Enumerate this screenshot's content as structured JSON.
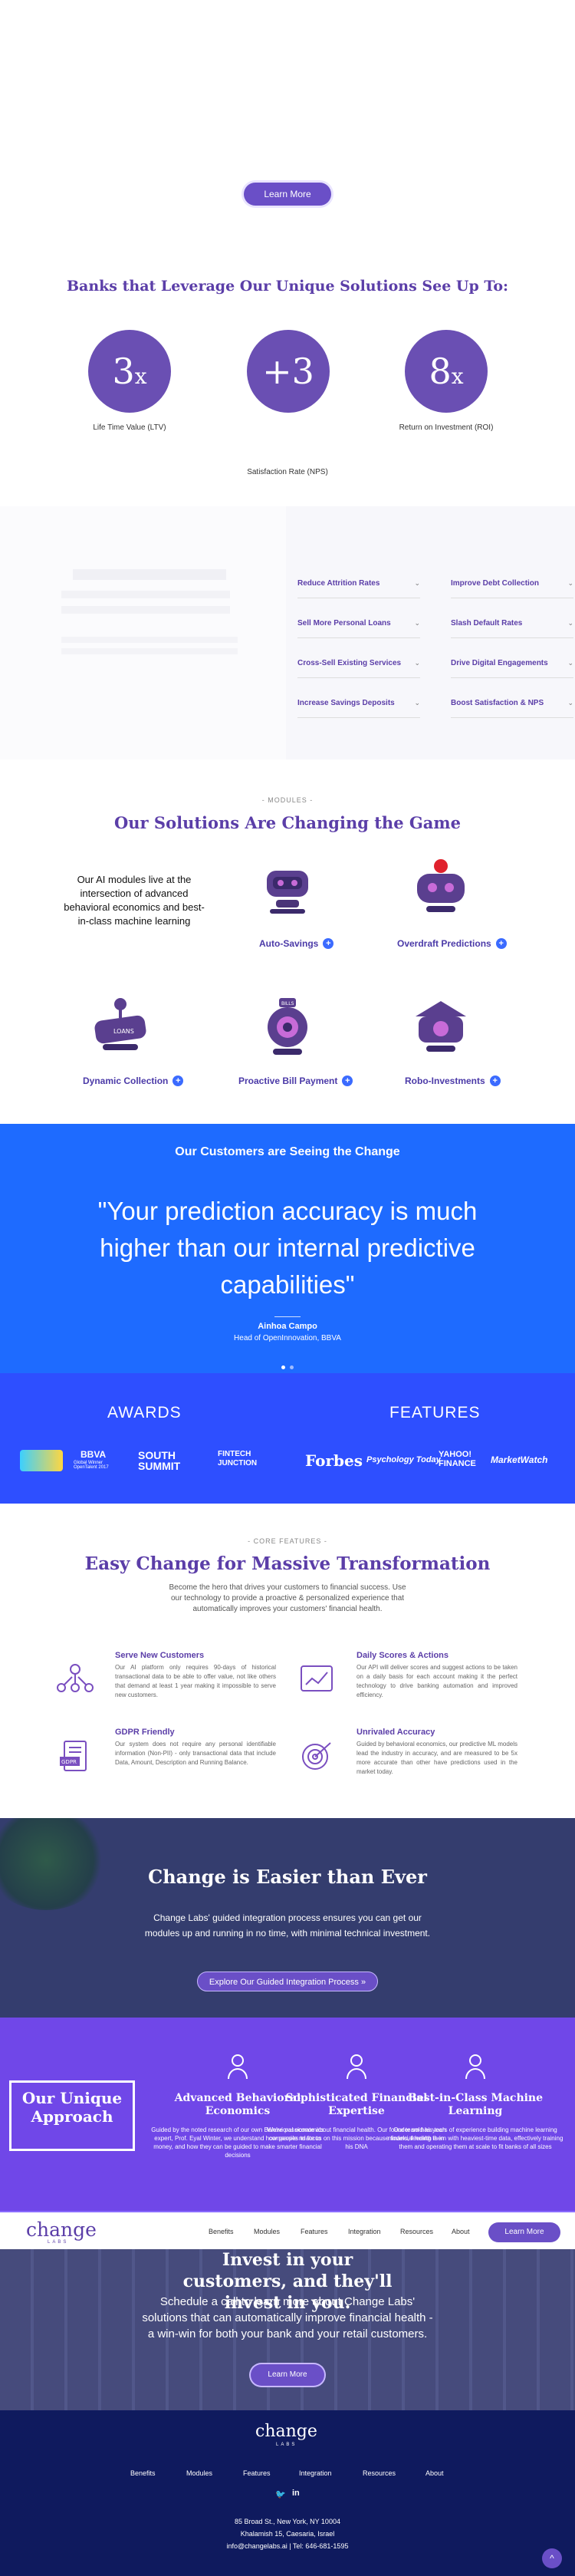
{
  "hero": {
    "learn_more": "Learn More"
  },
  "stats": {
    "title": "Banks that Leverage Our Unique Solutions See Up To:",
    "items": [
      {
        "value": "3",
        "unit": "x",
        "label": "Life Time Value (LTV)"
      },
      {
        "value": "+3",
        "unit": "",
        "label": "Satisfaction Rate (NPS)"
      },
      {
        "value": "8",
        "unit": "x",
        "label": "Return on Investment (ROI)"
      }
    ]
  },
  "faq": {
    "items": [
      "Reduce Attrition Rates",
      "Improve Debt Collection",
      "Sell More Personal Loans",
      "Slash Default Rates",
      "Cross-Sell Existing Services",
      "Drive Digital Engagements",
      "Increase Savings Deposits",
      "Boost Satisfaction & NPS"
    ]
  },
  "modules": {
    "kicker": "- MODULES -",
    "title": "Our Solutions Are Changing the Game",
    "intro": "Our AI modules live at the intersection of advanced behavioral economics and best-in-class machine learning",
    "items": [
      "Auto-Savings",
      "Overdraft Predictions",
      "Dynamic Collection",
      "Proactive Bill Payment",
      "Robo-Investments"
    ]
  },
  "testimonial": {
    "heading": "Our Customers are Seeing the Change",
    "quote": "\"Your prediction accuracy is much higher than our internal predictive capabilities\"",
    "name": "Ainhoa Campo",
    "role": "Head of OpenInnovation, BBVA"
  },
  "awards": {
    "awards_heading": "AWARDS",
    "features_heading": "FEATURES",
    "award_logos": [
      "BBVA",
      "SOUTH SUMMIT",
      "FINTECH JUNCTION"
    ],
    "bbva_sub": "Global Winner OpenTalent 2017",
    "press_logos": [
      "Forbes",
      "Psychology Today",
      "YAHOO! FINANCE",
      "MarketWatch"
    ]
  },
  "core": {
    "kicker": "- CORE FEATURES -",
    "title": "Easy Change for Massive Transformation",
    "intro": "Become the hero that drives your customers to financial success. Use our technology to provide a proactive & personalized experience that automatically improves your customers' financial health.",
    "features": [
      {
        "title": "Serve New Customers",
        "text": "Our AI platform only requires 90-days of historical transactional data to be able to offer value, not like others that demand at least 1 year making it impossible to serve new customers."
      },
      {
        "title": "Daily Scores & Actions",
        "text": "Our API will deliver scores and suggest actions to be taken on a daily basis for each account making it the perfect technology to drive banking automation and improved efficiency."
      },
      {
        "title": "GDPR Friendly",
        "text": "Our system does not require any personal identifiable information (Non-PII) - only transactional data that include Data, Amount, Description and Running Balance."
      },
      {
        "title": "Unrivaled Accuracy",
        "text": "Guided by behavioral economics, our predictive ML models lead the industry in accuracy, and are measured to be 5x more accurate than other have predictions used in the market today."
      }
    ]
  },
  "easier": {
    "title": "Change is Easier than Ever",
    "text": "Change Labs' guided integration process ensures you can get our modules up and running in no time, with minimal technical investment.",
    "cta": "Explore Our Guided Integration Process »"
  },
  "approach": {
    "box": "Our Unique Approach",
    "cols": [
      {
        "title": "Advanced Behavioral Economics",
        "text": "Guided by the noted research of our own Behavioral economics expert, Prof. Eyal Winter, we understand how people relate to money, and how they can be guided to make smarter financial decisions"
      },
      {
        "title": "Sophisticated Financial Expertise",
        "text": "We're passionate about financial health. Our founder sold his tech companies to focus on this mission because financial health is in his DNA"
      },
      {
        "title": "Best-in-Class Machine Learning",
        "text": "Our team has years of experience building machine learning models, feeding them with heaviest-time data, effectively training them and operating them at scale to fit banks of all sizes"
      }
    ]
  },
  "nav": {
    "brand": "change",
    "brand_sub": "LABS",
    "items": [
      "Benefits",
      "Modules",
      "Features",
      "Integration",
      "Resources",
      "About"
    ],
    "learn_more": "Learn More"
  },
  "invest": {
    "title": "Invest in your customers, and they'll invest in you.",
    "text": "Schedule a call to learn more about Change Labs' solutions that can automatically improve financial health - a win-win for both your bank and your retail customers.",
    "cta": "Learn More"
  },
  "footer": {
    "brand": "change",
    "brand_sub": "LABS",
    "nav": [
      "Benefits",
      "Modules",
      "Features",
      "Integration",
      "Resources",
      "About"
    ],
    "address1": "85 Broad St., New York, NY 10004",
    "address2": "Khalamish 15, Caesaria, Israel",
    "contact": "info@changelabs.ai | Tel: 646-681-1595"
  },
  "colors": {
    "primary": "#6a4fc7",
    "blue": "#1e6bff",
    "awards_bg": "#2e4fff",
    "footer_bg": "#0f1a5e"
  }
}
